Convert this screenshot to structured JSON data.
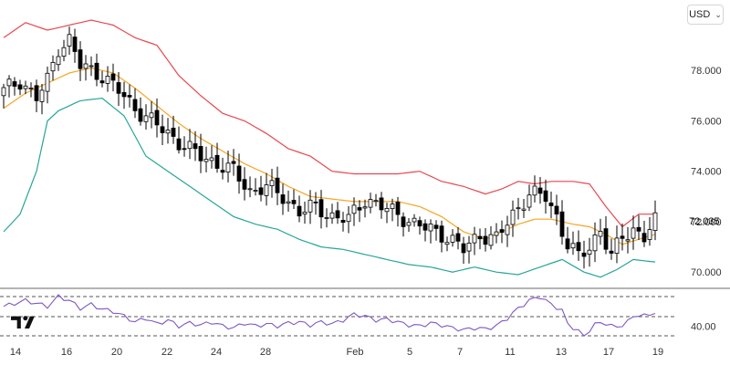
{
  "currency_selector": {
    "label": "USD",
    "chevron_icon": "chevron-down-icon"
  },
  "brand": {
    "icon": "tradingview-logo-icon"
  },
  "colors": {
    "upper_band": "#e8474f",
    "middle_band": "#f5a623",
    "lower_band": "#26a69a",
    "candle_up": "#ffffff",
    "candle_down": "#000000",
    "rsi_line": "#7e57c2",
    "rsi_levels": "#555555"
  },
  "chart_data": [
    {
      "type": "candlestick",
      "panel": "price",
      "indicators": [
        "Bollinger Bands (upper, middle, lower)"
      ],
      "x_tick_labels": [
        "14",
        "16",
        "20",
        "22",
        "24",
        "28",
        "Feb",
        "5",
        "7",
        "11",
        "13",
        "17",
        "19"
      ],
      "y_ticks": [
        70.0,
        72.0,
        74.0,
        76.0,
        78.0
      ],
      "y_tick_labels": [
        "70.000",
        "72.000",
        "74.000",
        "76.000",
        "78.000"
      ],
      "ylim": [
        69.5,
        80.0
      ],
      "last_price": 72.035,
      "last_price_label": "72.035",
      "close_anchors": [
        [
          0,
          77.2
        ],
        [
          3,
          77.6
        ],
        [
          6,
          76.9
        ],
        [
          8,
          77.6
        ],
        [
          10,
          78.9
        ],
        [
          12,
          79.2
        ],
        [
          14,
          78.2
        ],
        [
          16,
          78.0
        ],
        [
          18,
          77.8
        ],
        [
          21,
          77.2
        ],
        [
          24,
          76.5
        ],
        [
          27,
          76.0
        ],
        [
          30,
          75.5
        ],
        [
          33,
          75.0
        ],
        [
          36,
          74.6
        ],
        [
          39,
          74.3
        ],
        [
          42,
          74.0
        ],
        [
          45,
          73.2
        ],
        [
          48,
          73.4
        ],
        [
          51,
          73.0
        ],
        [
          54,
          72.4
        ],
        [
          57,
          72.6
        ],
        [
          60,
          72.2
        ],
        [
          63,
          72.1
        ],
        [
          66,
          72.9
        ],
        [
          69,
          72.6
        ],
        [
          72,
          72.3
        ],
        [
          75,
          71.9
        ],
        [
          78,
          71.7
        ],
        [
          81,
          71.4
        ],
        [
          84,
          70.9
        ],
        [
          87,
          71.5
        ],
        [
          90,
          71.3
        ],
        [
          93,
          72.3
        ],
        [
          96,
          73.1
        ],
        [
          99,
          73.0
        ],
        [
          101,
          72.2
        ],
        [
          103,
          71.1
        ],
        [
          105,
          70.6
        ],
        [
          107,
          71.0
        ],
        [
          109,
          71.7
        ],
        [
          111,
          70.6
        ],
        [
          113,
          71.4
        ],
        [
          115,
          71.7
        ],
        [
          117,
          71.4
        ],
        [
          119,
          72.0
        ]
      ],
      "upper_band_anchors": [
        [
          0,
          79.3
        ],
        [
          4,
          79.9
        ],
        [
          8,
          79.6
        ],
        [
          12,
          79.8
        ],
        [
          16,
          80.0
        ],
        [
          20,
          79.8
        ],
        [
          24,
          79.3
        ],
        [
          28,
          79.0
        ],
        [
          32,
          77.8
        ],
        [
          36,
          77.0
        ],
        [
          40,
          76.3
        ],
        [
          44,
          76.0
        ],
        [
          48,
          75.5
        ],
        [
          52,
          74.9
        ],
        [
          56,
          74.6
        ],
        [
          60,
          74.0
        ],
        [
          64,
          73.9
        ],
        [
          68,
          73.9
        ],
        [
          72,
          73.9
        ],
        [
          76,
          74.0
        ],
        [
          80,
          73.6
        ],
        [
          84,
          73.4
        ],
        [
          88,
          73.1
        ],
        [
          91,
          73.3
        ],
        [
          94,
          73.6
        ],
        [
          97,
          73.5
        ],
        [
          100,
          73.6
        ],
        [
          104,
          73.6
        ],
        [
          107,
          73.5
        ],
        [
          110,
          72.6
        ],
        [
          113,
          71.8
        ],
        [
          116,
          72.3
        ],
        [
          119,
          72.3
        ]
      ],
      "middle_band_anchors": [
        [
          0,
          76.5
        ],
        [
          4,
          77.1
        ],
        [
          8,
          77.5
        ],
        [
          12,
          77.9
        ],
        [
          16,
          78.1
        ],
        [
          20,
          77.9
        ],
        [
          24,
          77.3
        ],
        [
          28,
          76.6
        ],
        [
          32,
          75.9
        ],
        [
          36,
          75.3
        ],
        [
          40,
          74.8
        ],
        [
          44,
          74.3
        ],
        [
          48,
          73.9
        ],
        [
          52,
          73.4
        ],
        [
          56,
          73.0
        ],
        [
          60,
          72.9
        ],
        [
          64,
          72.8
        ],
        [
          68,
          72.8
        ],
        [
          72,
          72.8
        ],
        [
          76,
          72.6
        ],
        [
          80,
          72.2
        ],
        [
          84,
          71.6
        ],
        [
          88,
          71.3
        ],
        [
          91,
          71.6
        ],
        [
          94,
          71.9
        ],
        [
          97,
          72.1
        ],
        [
          100,
          72.1
        ],
        [
          104,
          71.9
        ],
        [
          107,
          71.8
        ],
        [
          110,
          71.5
        ],
        [
          113,
          71.1
        ],
        [
          116,
          71.3
        ],
        [
          119,
          71.5
        ]
      ],
      "lower_band_anchors": [
        [
          0,
          71.6
        ],
        [
          3,
          72.3
        ],
        [
          6,
          74.0
        ],
        [
          8,
          76.0
        ],
        [
          10,
          76.4
        ],
        [
          14,
          76.8
        ],
        [
          18,
          76.9
        ],
        [
          22,
          76.2
        ],
        [
          26,
          74.6
        ],
        [
          30,
          74.0
        ],
        [
          34,
          73.4
        ],
        [
          38,
          72.8
        ],
        [
          42,
          72.2
        ],
        [
          46,
          71.9
        ],
        [
          50,
          71.7
        ],
        [
          54,
          71.3
        ],
        [
          58,
          71.0
        ],
        [
          62,
          70.9
        ],
        [
          66,
          70.7
        ],
        [
          70,
          70.5
        ],
        [
          74,
          70.3
        ],
        [
          78,
          70.2
        ],
        [
          82,
          70.0
        ],
        [
          86,
          70.2
        ],
        [
          90,
          70.0
        ],
        [
          94,
          69.9
        ],
        [
          98,
          70.2
        ],
        [
          102,
          70.5
        ],
        [
          106,
          70.0
        ],
        [
          109,
          69.8
        ],
        [
          112,
          70.1
        ],
        [
          115,
          70.5
        ],
        [
          119,
          70.4
        ]
      ]
    },
    {
      "type": "line",
      "panel": "rsi",
      "y_tick_labels": [
        "40.00"
      ],
      "ylim": [
        27,
        75
      ],
      "levels": [
        70,
        50,
        30
      ],
      "rsi_anchors": [
        [
          0,
          60
        ],
        [
          4,
          66
        ],
        [
          8,
          60
        ],
        [
          10,
          70
        ],
        [
          12,
          66
        ],
        [
          14,
          58
        ],
        [
          16,
          62
        ],
        [
          18,
          57
        ],
        [
          20,
          55
        ],
        [
          22,
          50
        ],
        [
          24,
          44
        ],
        [
          26,
          48
        ],
        [
          28,
          42
        ],
        [
          30,
          46
        ],
        [
          32,
          40
        ],
        [
          34,
          43
        ],
        [
          36,
          41
        ],
        [
          38,
          44
        ],
        [
          40,
          40
        ],
        [
          42,
          38
        ],
        [
          44,
          43
        ],
        [
          46,
          40
        ],
        [
          48,
          42
        ],
        [
          50,
          40
        ],
        [
          52,
          43
        ],
        [
          54,
          44
        ],
        [
          56,
          41
        ],
        [
          58,
          44
        ],
        [
          60,
          42
        ],
        [
          62,
          46
        ],
        [
          64,
          52
        ],
        [
          66,
          50
        ],
        [
          68,
          46
        ],
        [
          70,
          47
        ],
        [
          72,
          44
        ],
        [
          74,
          41
        ],
        [
          76,
          40
        ],
        [
          78,
          43
        ],
        [
          80,
          41
        ],
        [
          82,
          38
        ],
        [
          84,
          36
        ],
        [
          86,
          38
        ],
        [
          88,
          37
        ],
        [
          90,
          40
        ],
        [
          92,
          48
        ],
        [
          94,
          58
        ],
        [
          96,
          66
        ],
        [
          98,
          70
        ],
        [
          100,
          62
        ],
        [
          102,
          56
        ],
        [
          103,
          42
        ],
        [
          105,
          35
        ],
        [
          106,
          29
        ],
        [
          107,
          36
        ],
        [
          108,
          42
        ],
        [
          110,
          43
        ],
        [
          112,
          38
        ],
        [
          114,
          45
        ],
        [
          116,
          52
        ],
        [
          118,
          50
        ],
        [
          119,
          55
        ]
      ]
    }
  ]
}
